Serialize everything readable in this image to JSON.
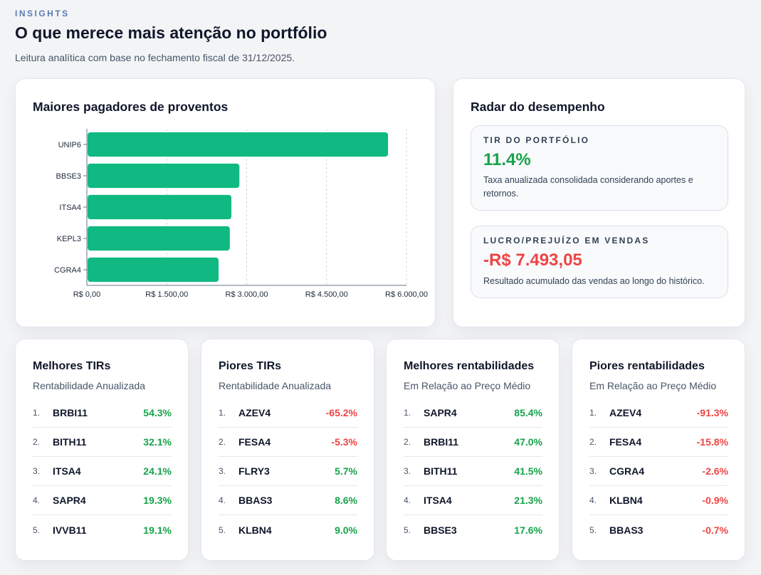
{
  "header": {
    "eyebrow": "INSIGHTS",
    "title": "O que merece mais atenção no portfólio",
    "subtitle": "Leitura analítica com base no fechamento fiscal de 31/12/2025."
  },
  "dividends_chart": {
    "title": "Maiores pagadores de proventos"
  },
  "chart_data": {
    "type": "bar",
    "orientation": "horizontal",
    "title": "Maiores pagadores de proventos",
    "categories": [
      "UNIP6",
      "BBSE3",
      "ITSA4",
      "KEPL3",
      "CGRA4"
    ],
    "values": [
      5640,
      2850,
      2700,
      2670,
      2460
    ],
    "xlim": [
      0,
      6000
    ],
    "x_ticks": [
      "R$ 0,00",
      "R$ 1.500,00",
      "R$ 3.000,00",
      "R$ 4.500,00",
      "R$ 6.000,00"
    ],
    "x_tick_values": [
      0,
      1500,
      3000,
      4500,
      6000
    ],
    "grid": "vertical dashed",
    "bar_color": "#10b981"
  },
  "radar": {
    "title": "Radar do desempenho",
    "tir": {
      "label": "TIR DO PORTFÓLIO",
      "value": "11.4%",
      "description": "Taxa anualizada consolidada considerando aportes e retornos."
    },
    "lucro": {
      "label": "LUCRO/PREJUÍZO EM VENDAS",
      "value": "-R$ 7.493,05",
      "description": "Resultado acumulado das vendas ao longo do histórico."
    }
  },
  "rankings": [
    {
      "title": "Melhores TIRs",
      "subtitle": "Rentabilidade Anualizada",
      "rows": [
        {
          "n": "1.",
          "ticker": "BRBI11",
          "value": "54.3%",
          "sign": "pos"
        },
        {
          "n": "2.",
          "ticker": "BITH11",
          "value": "32.1%",
          "sign": "pos"
        },
        {
          "n": "3.",
          "ticker": "ITSA4",
          "value": "24.1%",
          "sign": "pos"
        },
        {
          "n": "4.",
          "ticker": "SAPR4",
          "value": "19.3%",
          "sign": "pos"
        },
        {
          "n": "5.",
          "ticker": "IVVB11",
          "value": "19.1%",
          "sign": "pos"
        }
      ]
    },
    {
      "title": "Piores TIRs",
      "subtitle": "Rentabilidade Anualizada",
      "rows": [
        {
          "n": "1.",
          "ticker": "AZEV4",
          "value": "-65.2%",
          "sign": "neg"
        },
        {
          "n": "2.",
          "ticker": "FESA4",
          "value": "-5.3%",
          "sign": "neg"
        },
        {
          "n": "3.",
          "ticker": "FLRY3",
          "value": "5.7%",
          "sign": "pos"
        },
        {
          "n": "4.",
          "ticker": "BBAS3",
          "value": "8.6%",
          "sign": "pos"
        },
        {
          "n": "5.",
          "ticker": "KLBN4",
          "value": "9.0%",
          "sign": "pos"
        }
      ]
    },
    {
      "title": "Melhores rentabilidades",
      "subtitle": "Em Relação ao Preço Médio",
      "rows": [
        {
          "n": "1.",
          "ticker": "SAPR4",
          "value": "85.4%",
          "sign": "pos"
        },
        {
          "n": "2.",
          "ticker": "BRBI11",
          "value": "47.0%",
          "sign": "pos"
        },
        {
          "n": "3.",
          "ticker": "BITH11",
          "value": "41.5%",
          "sign": "pos"
        },
        {
          "n": "4.",
          "ticker": "ITSA4",
          "value": "21.3%",
          "sign": "pos"
        },
        {
          "n": "5.",
          "ticker": "BBSE3",
          "value": "17.6%",
          "sign": "pos"
        }
      ]
    },
    {
      "title": "Piores rentabilidades",
      "subtitle": "Em Relação ao Preço Médio",
      "rows": [
        {
          "n": "1.",
          "ticker": "AZEV4",
          "value": "-91.3%",
          "sign": "neg"
        },
        {
          "n": "2.",
          "ticker": "FESA4",
          "value": "-15.8%",
          "sign": "neg"
        },
        {
          "n": "3.",
          "ticker": "CGRA4",
          "value": "-2.6%",
          "sign": "neg"
        },
        {
          "n": "4.",
          "ticker": "KLBN4",
          "value": "-0.9%",
          "sign": "neg"
        },
        {
          "n": "5.",
          "ticker": "BBAS3",
          "value": "-0.7%",
          "sign": "neg"
        }
      ]
    }
  ],
  "colors": {
    "positive": "#16a34a",
    "negative": "#ef4444",
    "bar": "#10b981",
    "eyebrow": "#5b7bb5"
  }
}
